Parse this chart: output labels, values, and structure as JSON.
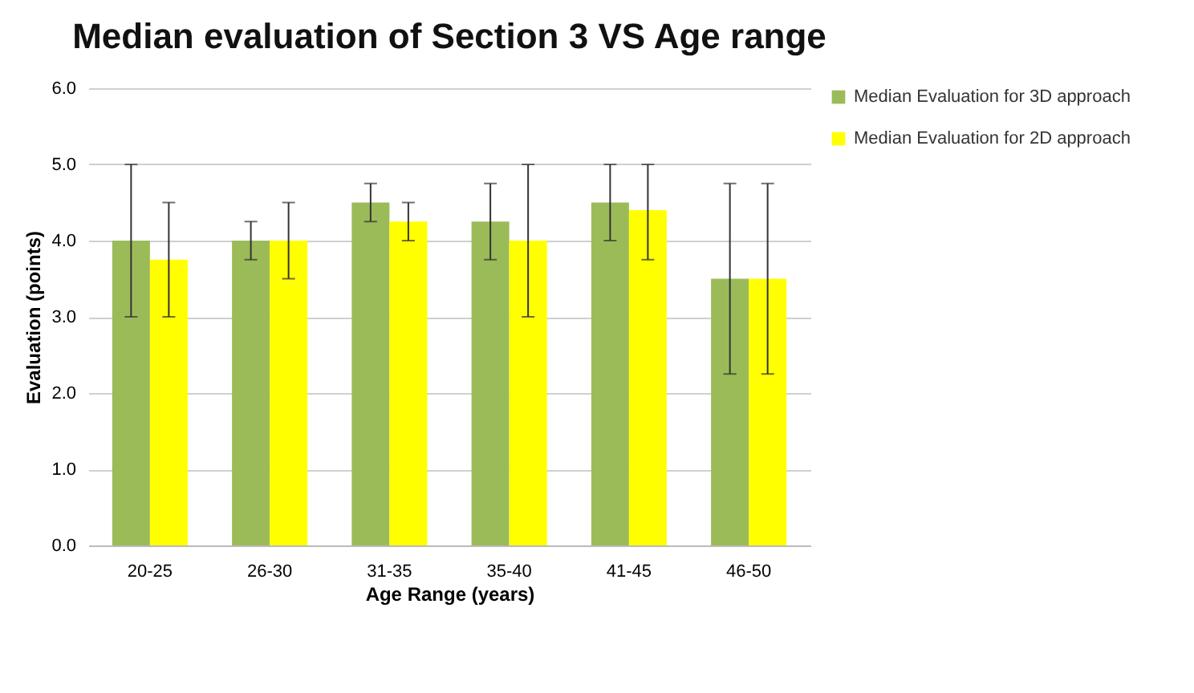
{
  "chart_data": {
    "type": "bar",
    "title": "Median evaluation of Section 3 VS Age range",
    "xlabel": "Age Range (years)",
    "ylabel": "Evaluation (points)",
    "categories": [
      "20-25",
      "26-30",
      "31-35",
      "35-40",
      "41-45",
      "46-50"
    ],
    "series": [
      {
        "name": "Median Evaluation for 3D approach",
        "color": "#9bbb59",
        "values": [
          4.0,
          4.0,
          4.5,
          4.25,
          4.5,
          3.5
        ],
        "errors": [
          [
            3.0,
            5.0
          ],
          [
            3.75,
            4.25
          ],
          [
            4.25,
            4.75
          ],
          [
            3.75,
            4.75
          ],
          [
            4.0,
            5.0
          ],
          [
            2.25,
            4.75
          ]
        ]
      },
      {
        "name": "Median Evaluation for 2D approach",
        "color": "#ffff00",
        "values": [
          3.75,
          4.0,
          4.25,
          4.0,
          4.4,
          3.5
        ],
        "errors": [
          [
            3.0,
            4.5
          ],
          [
            3.5,
            4.5
          ],
          [
            4.0,
            4.5
          ],
          [
            3.0,
            5.0
          ],
          [
            3.75,
            5.0
          ],
          [
            2.25,
            4.75
          ]
        ]
      }
    ],
    "ylim": [
      0,
      6
    ],
    "yticks": [
      {
        "value": 0,
        "label": "0.0"
      },
      {
        "value": 1,
        "label": "1.0"
      },
      {
        "value": 2,
        "label": "2.0"
      },
      {
        "value": 3,
        "label": "3.0"
      },
      {
        "value": 4,
        "label": "4.0"
      },
      {
        "value": 5,
        "label": "5.0"
      },
      {
        "value": 6,
        "label": "6.0"
      }
    ],
    "grid": "y",
    "legend": "right"
  }
}
